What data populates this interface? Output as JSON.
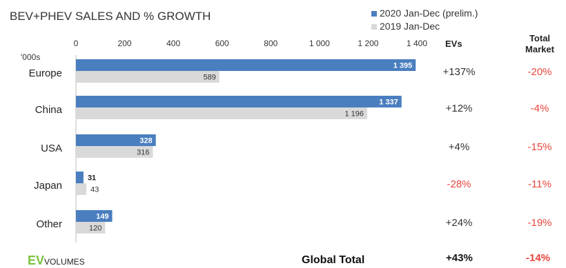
{
  "title": "BEV+PHEV SALES AND % GROWTH",
  "unit_label": "'000s",
  "legend": [
    {
      "label": "2020 Jan-Dec (prelim.)",
      "color": "#4a7ebf"
    },
    {
      "label": "2019 Jan-Dec",
      "color": "#d9d9d9"
    }
  ],
  "columns": {
    "ev_header": "EVs",
    "market_header_line1": "Total",
    "market_header_line2": "Market"
  },
  "colors": {
    "bar_2020": "#4a7ebf",
    "bar_2019": "#d9d9d9",
    "negative": "#e8453c",
    "positive": "#333333"
  },
  "chart_data": {
    "type": "bar",
    "orientation": "horizontal",
    "title": "BEV+PHEV SALES AND % GROWTH",
    "ylabel": "'000s",
    "categories": [
      "Europe",
      "China",
      "USA",
      "Japan",
      "Other"
    ],
    "series": [
      {
        "name": "2020 Jan-Dec (prelim.)",
        "values": [
          1395,
          1337,
          328,
          31,
          149
        ],
        "labels": [
          "1 395",
          "1 337",
          "328",
          "31",
          "149"
        ]
      },
      {
        "name": "2019 Jan-Dec",
        "values": [
          589,
          1196,
          316,
          43,
          120
        ],
        "labels": [
          "589",
          "1 196",
          "316",
          "43",
          "120"
        ]
      }
    ],
    "xlim": [
      0,
      1400
    ],
    "xticks": [
      0,
      200,
      400,
      600,
      800,
      1000,
      1200,
      1400
    ],
    "xtick_labels": [
      "0",
      "200",
      "400",
      "600",
      "800",
      "1 000",
      "1 200",
      "1 400"
    ],
    "legend_position": "top-right"
  },
  "growth": {
    "ev": [
      "+137%",
      "+12%",
      "+4%",
      "-28%",
      "+24%"
    ],
    "market": [
      "-20%",
      "-4%",
      "-15%",
      "-11%",
      "-19%"
    ]
  },
  "footer": {
    "logo_ev": "EV",
    "logo_rest": "VOLUMES",
    "label": "Global Total",
    "ev": "+43%",
    "market": "-14%"
  }
}
